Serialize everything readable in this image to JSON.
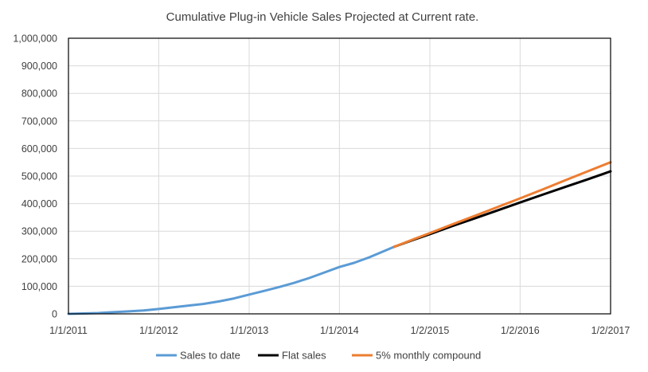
{
  "chart_data": {
    "type": "line",
    "title": "Cumulative Plug-in Vehicle Sales Projected at Current rate.",
    "xlabel": "",
    "ylabel": "",
    "x_axis": {
      "type": "date",
      "min": "2011-01-01",
      "max": "2017-01-02"
    },
    "xticks": [
      {
        "label": "1/1/2011",
        "date": "2011-01-01"
      },
      {
        "label": "1/1/2012",
        "date": "2012-01-01"
      },
      {
        "label": "1/1/2013",
        "date": "2013-01-01"
      },
      {
        "label": "1/1/2014",
        "date": "2014-01-01"
      },
      {
        "label": "1/2/2015",
        "date": "2015-01-02"
      },
      {
        "label": "1/2/2016",
        "date": "2016-01-02"
      },
      {
        "label": "1/2/2017",
        "date": "2017-01-02"
      }
    ],
    "ylim": [
      0,
      1000000
    ],
    "yticks": [
      {
        "label": "0",
        "value": 0
      },
      {
        "label": "100,000",
        "value": 100000
      },
      {
        "label": "200,000",
        "value": 200000
      },
      {
        "label": "300,000",
        "value": 300000
      },
      {
        "label": "400,000",
        "value": 400000
      },
      {
        "label": "500,000",
        "value": 500000
      },
      {
        "label": "600,000",
        "value": 600000
      },
      {
        "label": "700,000",
        "value": 700000
      },
      {
        "label": "800,000",
        "value": 800000
      },
      {
        "label": "900,000",
        "value": 900000
      },
      {
        "label": "1,000,000",
        "value": 1000000
      }
    ],
    "grid": true,
    "legend": "bottom",
    "series": [
      {
        "name": "Sales to date",
        "color": "#5b9bd5",
        "points": [
          [
            "2011-01-01",
            0
          ],
          [
            "2011-03-01",
            1500
          ],
          [
            "2011-05-01",
            3000
          ],
          [
            "2011-07-01",
            6000
          ],
          [
            "2011-09-01",
            9000
          ],
          [
            "2011-11-01",
            12000
          ],
          [
            "2012-01-01",
            17500
          ],
          [
            "2012-03-01",
            24000
          ],
          [
            "2012-05-01",
            30000
          ],
          [
            "2012-07-01",
            36000
          ],
          [
            "2012-09-01",
            45000
          ],
          [
            "2012-11-01",
            56000
          ],
          [
            "2013-01-01",
            70000
          ],
          [
            "2013-03-01",
            83000
          ],
          [
            "2013-05-01",
            97000
          ],
          [
            "2013-07-01",
            112000
          ],
          [
            "2013-09-01",
            130000
          ],
          [
            "2013-11-01",
            150000
          ],
          [
            "2014-01-01",
            170000
          ],
          [
            "2014-03-01",
            185000
          ],
          [
            "2014-05-01",
            205000
          ],
          [
            "2014-07-01",
            228000
          ],
          [
            "2014-08-10",
            243000
          ]
        ]
      },
      {
        "name": "Flat sales",
        "color": "#000000",
        "points": [
          [
            "2014-08-10",
            243000
          ],
          [
            "2014-11-01",
            270000
          ],
          [
            "2015-01-02",
            289000
          ],
          [
            "2015-04-01",
            318000
          ],
          [
            "2015-07-01",
            346000
          ],
          [
            "2015-10-01",
            375000
          ],
          [
            "2016-01-02",
            404000
          ],
          [
            "2016-04-01",
            432000
          ],
          [
            "2016-07-01",
            460000
          ],
          [
            "2016-10-01",
            488000
          ],
          [
            "2017-01-02",
            517000
          ]
        ]
      },
      {
        "name": "5% monthly compound",
        "color": "#ed7d31",
        "points": [
          [
            "2014-08-10",
            243000
          ],
          [
            "2014-11-01",
            272000
          ],
          [
            "2015-01-02",
            293000
          ],
          [
            "2015-04-01",
            324000
          ],
          [
            "2015-07-01",
            355000
          ],
          [
            "2015-10-01",
            387000
          ],
          [
            "2016-01-02",
            419000
          ],
          [
            "2016-04-01",
            451000
          ],
          [
            "2016-07-01",
            484000
          ],
          [
            "2016-10-01",
            517000
          ],
          [
            "2017-01-02",
            550000
          ]
        ]
      }
    ]
  }
}
